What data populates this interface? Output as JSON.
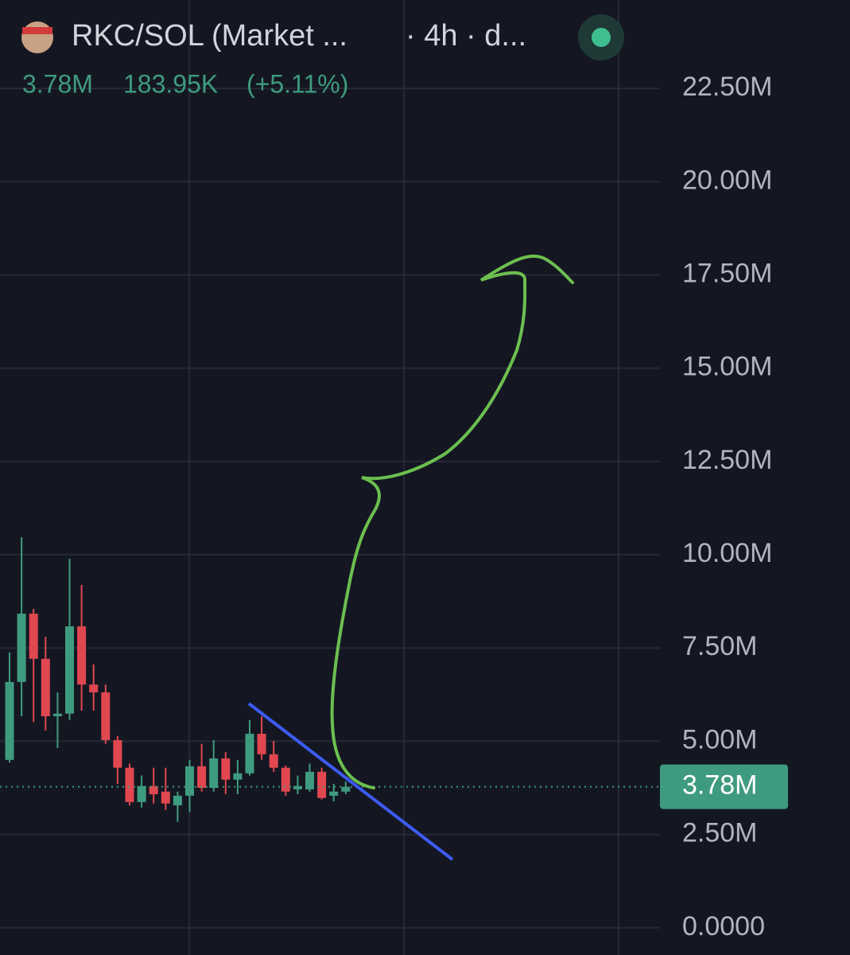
{
  "header": {
    "symbol": "RKC/SOL (Market ...",
    "interval": "· 4h · d...",
    "last": "3.78M",
    "change": "183.95K",
    "change_pct": "(+5.11%)"
  },
  "chart_data": {
    "type": "candlestick",
    "categories": [
      null,
      null,
      null,
      null,
      null,
      null,
      null,
      null,
      null,
      null,
      null,
      null,
      null,
      null,
      null,
      null,
      null,
      null,
      null,
      null,
      null,
      null,
      null,
      null,
      null,
      null,
      null,
      null,
      null
    ],
    "open": [
      4500000,
      6590000,
      8420000,
      7210000,
      5670000,
      5740000,
      8080000,
      6520000,
      6310000,
      5030000,
      4290000,
      3370000,
      3800000,
      3650000,
      3280000,
      3540000,
      4330000,
      3750000,
      4540000,
      3970000,
      4140000,
      5200000,
      4650000,
      4290000,
      3710000,
      3710000,
      4180000,
      3540000,
      3650000
    ],
    "high": [
      7380000,
      10470000,
      8550000,
      7800000,
      6310000,
      9890000,
      9190000,
      7060000,
      6520000,
      5140000,
      4400000,
      4080000,
      4290000,
      4290000,
      3650000,
      4500000,
      4930000,
      5030000,
      4710000,
      4500000,
      5570000,
      5670000,
      5010000,
      4350000,
      4080000,
      4400000,
      4290000,
      3860000,
      3920000
    ],
    "low": [
      4430000,
      5670000,
      5520000,
      5290000,
      4820000,
      5570000,
      5820000,
      5820000,
      4930000,
      3860000,
      3280000,
      3220000,
      3330000,
      3160000,
      2840000,
      3110000,
      3650000,
      3650000,
      3580000,
      3580000,
      4080000,
      4500000,
      4180000,
      3540000,
      3580000,
      3650000,
      3440000,
      3390000,
      3580000
    ],
    "close": [
      6590000,
      8420000,
      7210000,
      5670000,
      5740000,
      8080000,
      6520000,
      6310000,
      5030000,
      4290000,
      3370000,
      3800000,
      3580000,
      3330000,
      3540000,
      4330000,
      3750000,
      4540000,
      3970000,
      4140000,
      5200000,
      4650000,
      4290000,
      3650000,
      3800000,
      4180000,
      3480000,
      3650000,
      3780000
    ],
    "up_color": "#3f9b7f",
    "down_color": "#e0474f",
    "ylim": [
      -730000,
      24870000
    ],
    "yticks": [
      {
        "value": 0,
        "label": "0.0000"
      },
      {
        "value": 2500000,
        "label": "2.50M"
      },
      {
        "value": 5000000,
        "label": "5.00M"
      },
      {
        "value": 7500000,
        "label": "7.50M"
      },
      {
        "value": 10000000,
        "label": "10.00M"
      },
      {
        "value": 12500000,
        "label": "12.50M"
      },
      {
        "value": 15000000,
        "label": "15.00M"
      },
      {
        "value": 17500000,
        "label": "17.50M"
      },
      {
        "value": 20000000,
        "label": "20.00M"
      },
      {
        "value": 22500000,
        "label": "22.50M"
      }
    ],
    "last_price": {
      "value": 3780000,
      "label": "3.78M"
    },
    "grid": true
  }
}
